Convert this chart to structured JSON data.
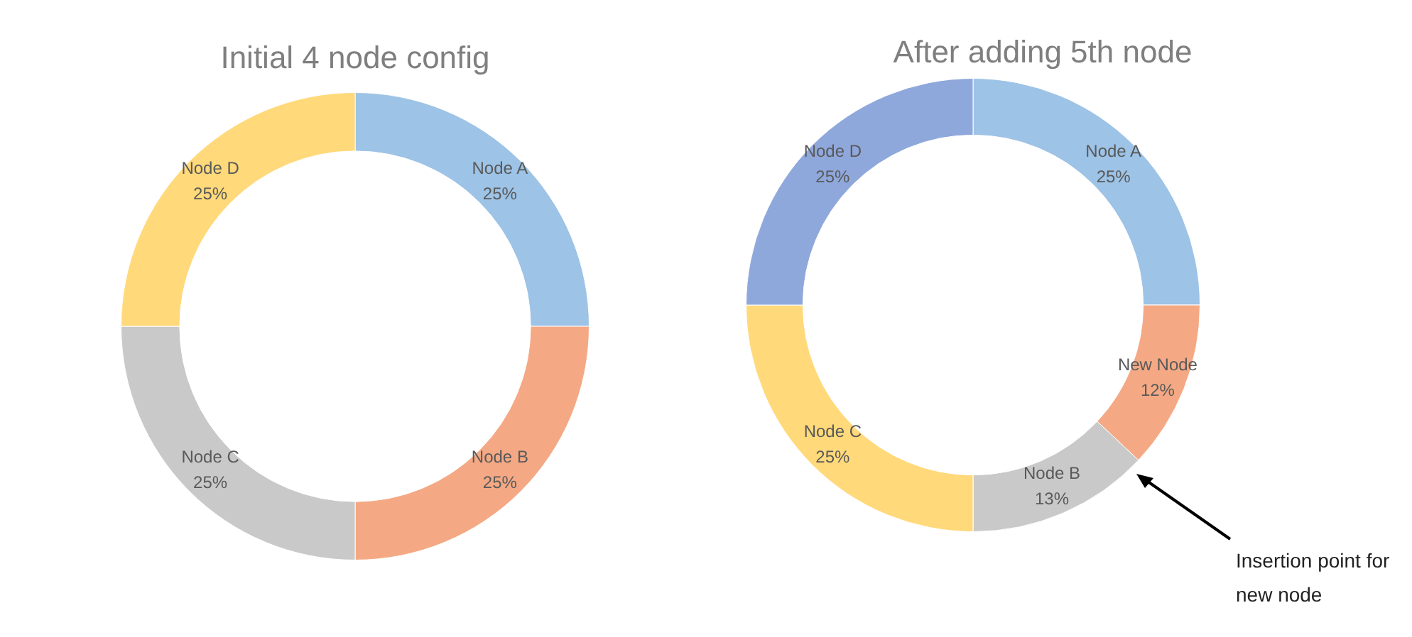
{
  "chart_data": [
    {
      "type": "donut",
      "title": "Initial 4 node config",
      "categories": [
        "Node A",
        "Node B",
        "Node C",
        "Node D"
      ],
      "values": [
        25,
        25,
        25,
        25
      ],
      "colors": [
        "#9dc3e6",
        "#f4a984",
        "#c9c9c9",
        "#ffd97a"
      ],
      "value_labels": [
        "25%",
        "25%",
        "25%",
        "25%"
      ]
    },
    {
      "type": "donut",
      "title": "After adding 5th node",
      "categories": [
        "Node A",
        "New Node",
        "Node B",
        "Node C",
        "Node D"
      ],
      "values": [
        25,
        12,
        13,
        25,
        25
      ],
      "colors": [
        "#9dc3e6",
        "#f4a984",
        "#c9c9c9",
        "#ffd97a",
        "#8fa8dc"
      ],
      "value_labels": [
        "25%",
        "12%",
        "13%",
        "25%",
        "25%"
      ],
      "annotations": [
        "Insertion point for new node"
      ]
    }
  ]
}
